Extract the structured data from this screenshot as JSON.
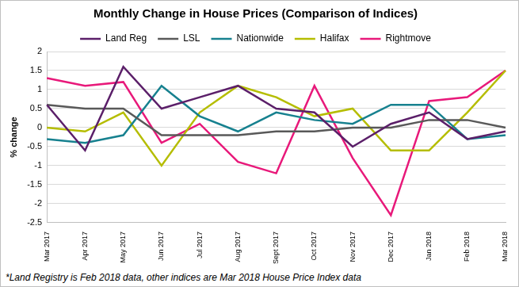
{
  "chart_data": {
    "type": "line",
    "title": "Monthly Change in House Prices (Comparison of Indices)",
    "y_label": "% change",
    "footnote": "*Land Registry is Feb 2018 data, other indices are Mar 2018 House Price Index data",
    "categories": [
      "Mar 2017",
      "Apr 2017",
      "May 2017",
      "Jun 2017",
      "Jul 2017",
      "Aug 2017",
      "Sept 2017",
      "Oct 2017",
      "Nov 2017",
      "Dec 2017",
      "Jan 2018",
      "Feb 2018",
      "Mar 2018"
    ],
    "series": [
      {
        "name": "Land Reg",
        "color": "#5b1f69",
        "values": [
          0.6,
          -0.6,
          1.6,
          0.5,
          0.8,
          1.1,
          0.5,
          0.4,
          -0.5,
          0.1,
          0.4,
          -0.3,
          -0.1
        ]
      },
      {
        "name": "LSL",
        "color": "#595959",
        "values": [
          0.6,
          0.5,
          0.5,
          -0.2,
          -0.2,
          -0.2,
          -0.1,
          -0.1,
          0.0,
          0.0,
          0.2,
          0.2,
          0.0
        ]
      },
      {
        "name": "Nationwide",
        "color": "#17818f",
        "values": [
          -0.3,
          -0.4,
          -0.2,
          1.1,
          0.3,
          -0.1,
          0.4,
          0.2,
          0.1,
          0.6,
          0.6,
          -0.3,
          -0.2
        ]
      },
      {
        "name": "Halifax",
        "color": "#b5bd00",
        "values": [
          0.0,
          -0.1,
          0.4,
          -1.0,
          0.4,
          1.1,
          0.8,
          0.3,
          0.5,
          -0.6,
          -0.6,
          0.4,
          1.5
        ]
      },
      {
        "name": "Rightmove",
        "color": "#e8197a",
        "values": [
          1.3,
          1.1,
          1.2,
          -0.4,
          0.1,
          -0.9,
          -1.2,
          1.1,
          -0.8,
          -2.3,
          0.7,
          0.8,
          1.5
        ]
      }
    ],
    "ylim": [
      -2.5,
      2
    ],
    "yticks": [
      -2.5,
      -2,
      -1.5,
      -1,
      -0.5,
      0,
      0.5,
      1,
      1.5,
      2
    ],
    "grid": true,
    "legend": "top",
    "marker": "none",
    "line_style": "solid"
  }
}
